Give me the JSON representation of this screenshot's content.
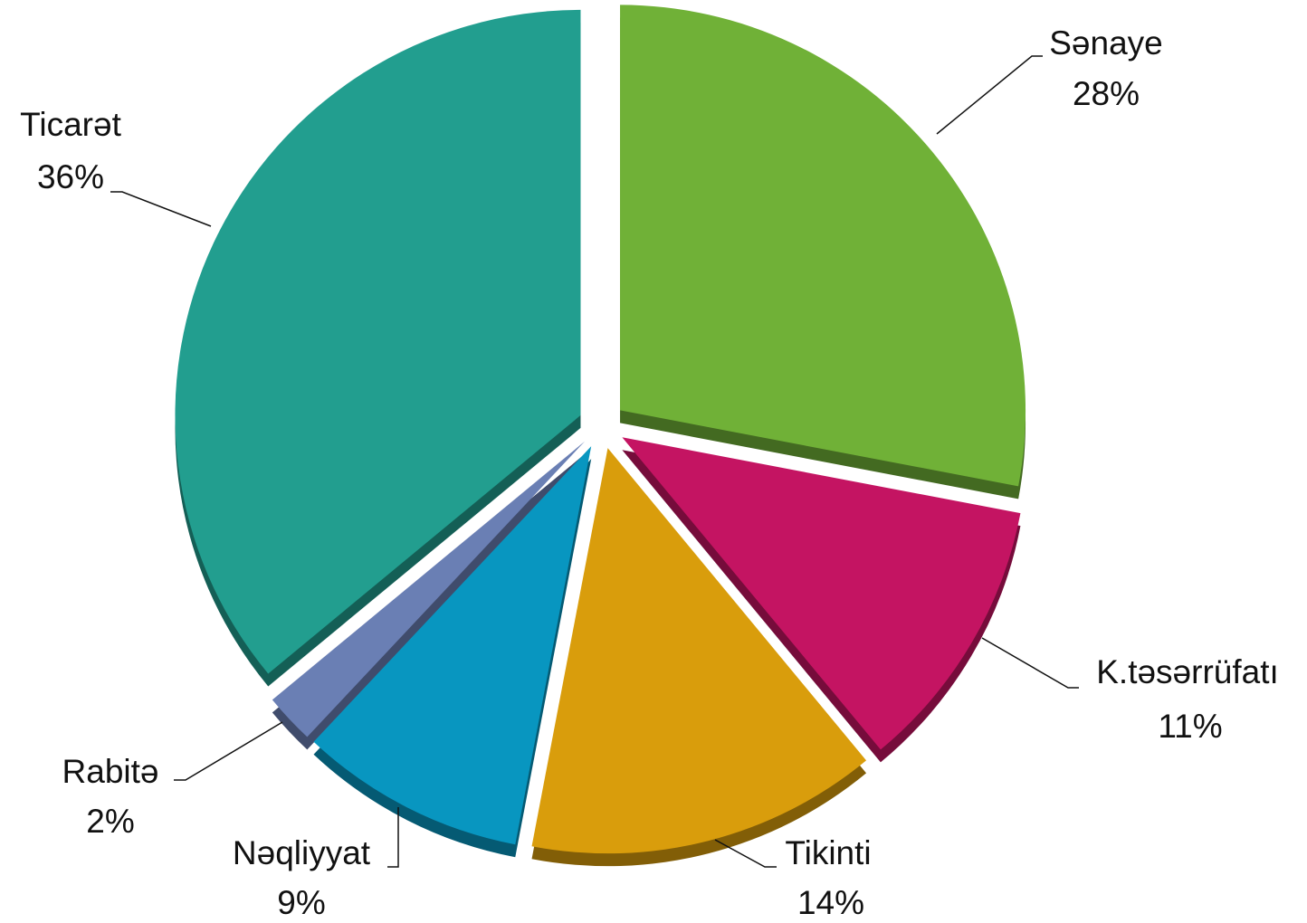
{
  "chart_data": {
    "type": "pie",
    "categories": [
      "Sənaye",
      "K.təsərrüfatı",
      "Tikinti",
      "Nəqliyyat",
      "Rabitə",
      "Ticarət"
    ],
    "values": [
      28,
      11,
      14,
      9,
      2,
      36
    ],
    "value_labels": [
      "28%",
      "11%",
      "14%",
      "9%",
      "2%",
      "36%"
    ],
    "colors": [
      "#70b137",
      "#c41462",
      "#d99d0c",
      "#0896c0",
      "#6a7fb4",
      "#229e8f"
    ]
  }
}
